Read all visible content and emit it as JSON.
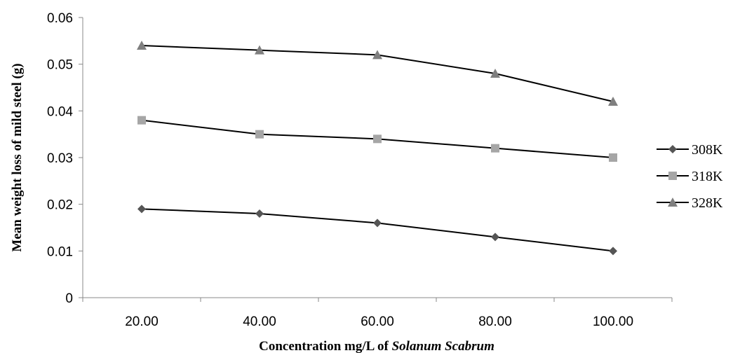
{
  "chart_data": {
    "type": "line",
    "categories": [
      "20.00",
      "40.00",
      "60.00",
      "80.00",
      "100.00"
    ],
    "series": [
      {
        "name": "308K",
        "values": [
          0.019,
          0.018,
          0.016,
          0.013,
          0.01
        ],
        "marker": "diamond",
        "color": "#555555"
      },
      {
        "name": "318K",
        "values": [
          0.038,
          0.035,
          0.034,
          0.032,
          0.03
        ],
        "marker": "square",
        "color": "#a6a6a6"
      },
      {
        "name": "328K",
        "values": [
          0.054,
          0.053,
          0.052,
          0.048,
          0.042
        ],
        "marker": "triangle",
        "color": "#7f7f7f"
      }
    ],
    "xlabel_prefix": "Concentration mg/L of ",
    "xlabel_italic": "Solanum Scabrum",
    "ylabel": "Mean  weight loss of mild steel (g)",
    "ylim": [
      0,
      0.06
    ],
    "yticks": [
      {
        "value": 0,
        "label": "0"
      },
      {
        "value": 0.01,
        "label": "0.01"
      },
      {
        "value": 0.02,
        "label": "0.02"
      },
      {
        "value": 0.03,
        "label": "0.03"
      },
      {
        "value": 0.04,
        "label": "0.04"
      },
      {
        "value": 0.05,
        "label": "0.05"
      },
      {
        "value": 0.06,
        "label": "0.06"
      }
    ],
    "grid": false,
    "legend_position": "right",
    "line_color": "#000000"
  }
}
